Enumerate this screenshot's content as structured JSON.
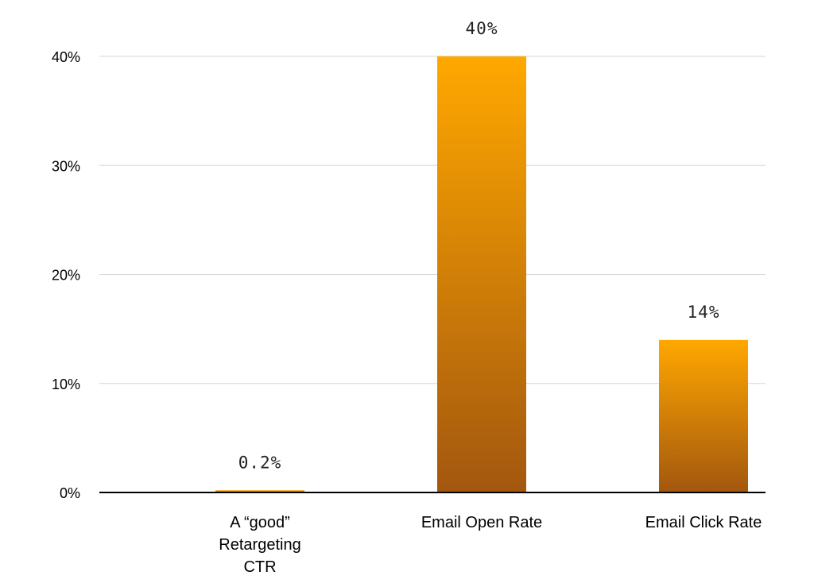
{
  "chart_data": {
    "type": "bar",
    "categories": [
      [
        "A “good”",
        "Retargeting",
        "CTR"
      ],
      [
        "Email Open Rate"
      ],
      [
        "Email Click Rate"
      ]
    ],
    "values": [
      0.2,
      40,
      14
    ],
    "data_labels": [
      "0.2%",
      "40%",
      "14%"
    ],
    "title": "",
    "xlabel": "",
    "ylabel": "",
    "ylim": [
      0,
      40
    ],
    "yticks": [
      0,
      10,
      20,
      30,
      40
    ],
    "ytick_labels": [
      "0%",
      "10%",
      "20%",
      "30%",
      "40%"
    ],
    "grid": true,
    "legend": "none",
    "colors": {
      "bar_top": "#FFA800",
      "bar_bottom": "#A3570F",
      "grid": "#d6d6d6",
      "axis": "#000000"
    }
  }
}
